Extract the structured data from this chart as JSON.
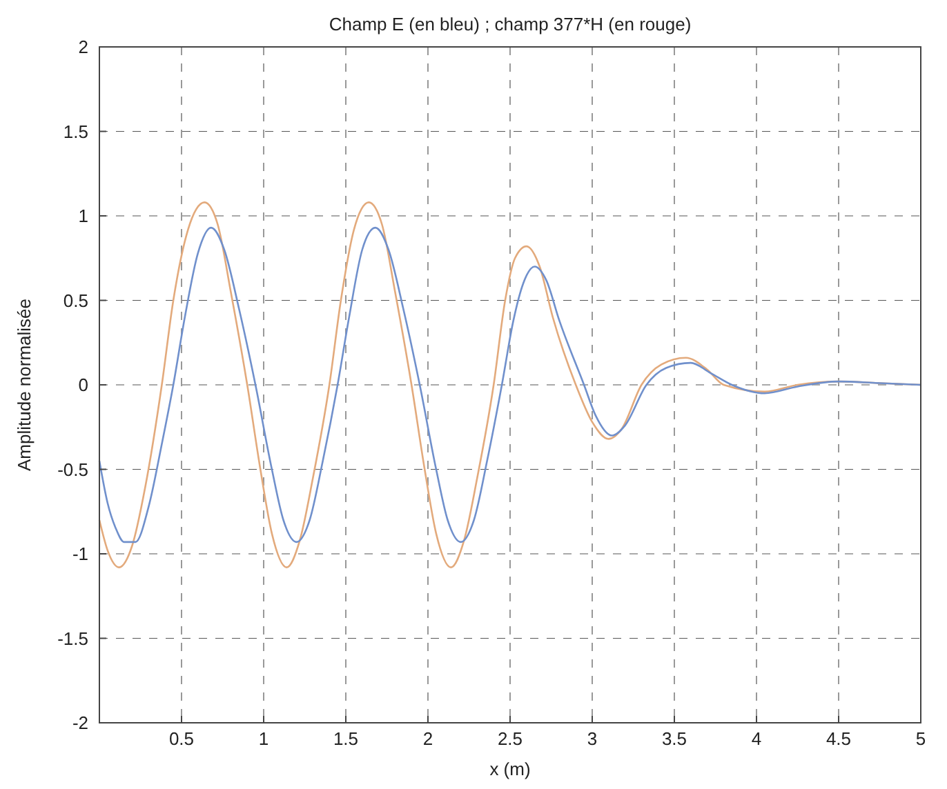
{
  "chart_data": {
    "type": "line",
    "title": "Champ E (en bleu) ; champ 377*H (en rouge)",
    "xlabel": "x (m)",
    "ylabel": "Amplitude normalisée",
    "xlim": [
      0,
      5
    ],
    "xticks": [
      {
        "value": 0,
        "label": null
      },
      0.5,
      1,
      1.5,
      2,
      2.5,
      3,
      3.5,
      4,
      4.5,
      5
    ],
    "ylim": [
      -2,
      2
    ],
    "yticks": [
      -2,
      -1.5,
      -1,
      -0.5,
      0,
      0.5,
      1,
      1.5,
      2
    ],
    "grid": true,
    "series": [
      {
        "color": "#e3aa7c",
        "x": [
          0,
          0.05,
          0.12,
          0.2,
          0.28,
          0.38,
          0.45,
          0.54,
          0.64,
          0.72,
          0.8,
          0.9,
          0.98,
          1.05,
          1.14,
          1.22,
          1.3,
          1.4,
          1.47,
          1.55,
          1.64,
          1.72,
          1.8,
          1.9,
          1.98,
          2.05,
          2.14,
          2.22,
          2.3,
          2.4,
          2.47,
          2.53,
          2.6,
          2.68,
          2.76,
          2.9,
          3.0,
          3.1,
          3.18,
          3.3,
          3.42,
          3.57,
          3.7,
          3.8,
          4.05,
          4.25,
          4.5,
          4.75,
          5
        ],
        "values": [
          -0.8,
          -0.98,
          -1.08,
          -0.95,
          -0.6,
          0,
          0.5,
          0.92,
          1.08,
          0.95,
          0.55,
          0,
          -0.5,
          -0.88,
          -1.08,
          -0.92,
          -0.55,
          0,
          0.5,
          0.92,
          1.08,
          0.95,
          0.55,
          0,
          -0.5,
          -0.88,
          -1.08,
          -0.92,
          -0.55,
          0,
          0.5,
          0.75,
          0.82,
          0.7,
          0.4,
          0,
          -0.22,
          -0.32,
          -0.26,
          0,
          0.12,
          0.16,
          0.09,
          0,
          -0.04,
          0,
          0.02,
          0.01,
          0
        ]
      },
      {
        "color": "#7090cc",
        "x": [
          0,
          0.05,
          0.1,
          0.15,
          0.22,
          0.3,
          0.38,
          0.45,
          0.52,
          0.6,
          0.68,
          0.76,
          0.85,
          0.95,
          1.05,
          1.12,
          1.2,
          1.28,
          1.36,
          1.45,
          1.52,
          1.6,
          1.68,
          1.76,
          1.85,
          1.95,
          2.05,
          2.12,
          2.2,
          2.28,
          2.36,
          2.45,
          2.52,
          2.58,
          2.65,
          2.72,
          2.8,
          2.95,
          3.02,
          3.12,
          3.2,
          3.33,
          3.45,
          3.6,
          3.72,
          3.85,
          4.05,
          4.25,
          4.5,
          4.75,
          5
        ],
        "values": [
          -0.45,
          -0.7,
          -0.85,
          -0.93,
          -0.93,
          -0.72,
          -0.35,
          0,
          0.4,
          0.78,
          0.93,
          0.8,
          0.45,
          0,
          -0.5,
          -0.8,
          -0.93,
          -0.8,
          -0.45,
          0,
          0.4,
          0.8,
          0.93,
          0.8,
          0.45,
          0,
          -0.5,
          -0.8,
          -0.93,
          -0.8,
          -0.45,
          0,
          0.38,
          0.6,
          0.7,
          0.62,
          0.38,
          0,
          -0.18,
          -0.3,
          -0.24,
          0,
          0.1,
          0.13,
          0.07,
          0,
          -0.05,
          -0.01,
          0.02,
          0.01,
          0
        ]
      }
    ]
  }
}
